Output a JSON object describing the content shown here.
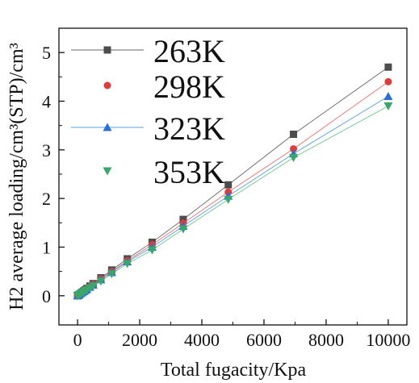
{
  "chart_data": {
    "type": "scatter",
    "xlabel": "Total fugacity/Kpa",
    "ylabel": "H2 average loading/cm³(STP)/cm³",
    "xlim": [
      -600,
      10600
    ],
    "ylim": [
      -0.6,
      5.5
    ],
    "xticks": [
      0,
      2000,
      4000,
      6000,
      8000,
      10000
    ],
    "yticks": [
      0,
      1,
      2,
      3,
      4,
      5
    ],
    "grid": false,
    "legend_position": "top-left",
    "x": [
      0,
      20,
      50,
      100,
      150,
      200,
      250,
      300,
      400,
      500,
      750,
      1100,
      1600,
      2400,
      3400,
      4850,
      6950,
      10000
    ],
    "series": [
      {
        "name": "263K",
        "marker": "square",
        "color": "#4d4d4d",
        "line_color": "#666666",
        "values": [
          0,
          0.01,
          0.025,
          0.05,
          0.075,
          0.1,
          0.125,
          0.15,
          0.2,
          0.25,
          0.37,
          0.53,
          0.76,
          1.1,
          1.57,
          2.28,
          3.32,
          4.7
        ]
      },
      {
        "name": "298K",
        "marker": "circle",
        "color": "#e03c3c",
        "line_color": "#e87070",
        "values": [
          0,
          0.009,
          0.023,
          0.046,
          0.07,
          0.093,
          0.116,
          0.14,
          0.186,
          0.233,
          0.35,
          0.5,
          0.72,
          1.05,
          1.49,
          2.13,
          3.02,
          4.4
        ]
      },
      {
        "name": "323K",
        "marker": "triangle-up",
        "color": "#2a6fd6",
        "line_color": "#5aa0e0",
        "values": [
          0,
          0.009,
          0.022,
          0.044,
          0.066,
          0.088,
          0.11,
          0.132,
          0.176,
          0.22,
          0.33,
          0.48,
          0.7,
          1.0,
          1.43,
          2.05,
          2.92,
          4.1
        ]
      },
      {
        "name": "353K",
        "marker": "triangle-down",
        "color": "#3aa66a",
        "line_color": "#6cc48f",
        "values": [
          0,
          0.008,
          0.02,
          0.04,
          0.06,
          0.08,
          0.1,
          0.12,
          0.16,
          0.2,
          0.3,
          0.45,
          0.66,
          0.94,
          1.37,
          1.98,
          2.84,
          3.9
        ]
      }
    ]
  }
}
